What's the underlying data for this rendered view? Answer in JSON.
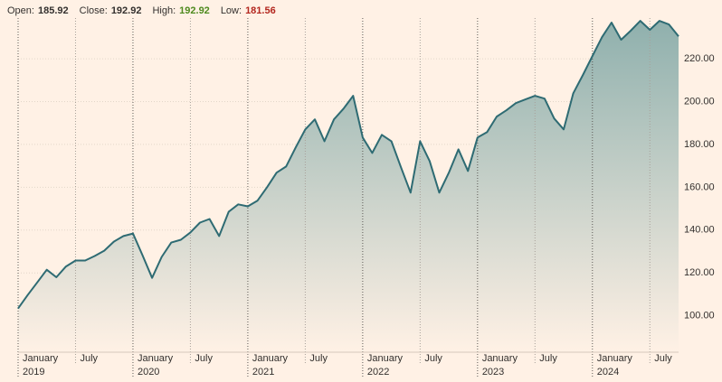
{
  "chart_data": {
    "type": "area-line",
    "header": [
      {
        "label": "Open:",
        "value": 185.92,
        "color": "#33302e"
      },
      {
        "label": "Close:",
        "value": 192.92,
        "color": "#33302e"
      },
      {
        "label": "High:",
        "value": 192.92,
        "color": "#4e8a1e"
      },
      {
        "label": "Low:",
        "value": 181.56,
        "color": "#b3261e"
      }
    ],
    "x": [
      "2019-01",
      "2019-02",
      "2019-03",
      "2019-04",
      "2019-05",
      "2019-06",
      "2019-07",
      "2019-08",
      "2019-09",
      "2019-10",
      "2019-11",
      "2019-12",
      "2020-01",
      "2020-02",
      "2020-03",
      "2020-04",
      "2020-05",
      "2020-06",
      "2020-07",
      "2020-08",
      "2020-09",
      "2020-10",
      "2020-11",
      "2020-12",
      "2021-01",
      "2021-02",
      "2021-03",
      "2021-04",
      "2021-05",
      "2021-06",
      "2021-07",
      "2021-08",
      "2021-09",
      "2021-10",
      "2021-11",
      "2021-12",
      "2022-01",
      "2022-02",
      "2022-03",
      "2022-04",
      "2022-05",
      "2022-06",
      "2022-07",
      "2022-08",
      "2022-09",
      "2022-10",
      "2022-11",
      "2022-12",
      "2023-01",
      "2023-02",
      "2023-03",
      "2023-04",
      "2023-05",
      "2023-06",
      "2023-07",
      "2023-08",
      "2023-09",
      "2023-10",
      "2023-11",
      "2023-12",
      "2024-01",
      "2024-02",
      "2024-03",
      "2024-04",
      "2024-05",
      "2024-06",
      "2024-07",
      "2024-08",
      "2024-09",
      "2024-10"
    ],
    "series": [
      {
        "color": "#2e6b73",
        "values": [
          103.4,
          109.7,
          115.6,
          121.5,
          118,
          123,
          125.8,
          125.8,
          127.9,
          130.4,
          134.6,
          137.2,
          138.4,
          128.3,
          117.7,
          127.5,
          134.2,
          135.5,
          138.9,
          143.5,
          145.2,
          137.2,
          148.6,
          152,
          151.1,
          153.7,
          160,
          166.8,
          169.7,
          178.6,
          187,
          191.7,
          181.5,
          191.7,
          196.7,
          202.7,
          183.2,
          176,
          184.5,
          181.5,
          169.3,
          157.5,
          181.5,
          172.2,
          157.5,
          166.8,
          177.7,
          167.6,
          183.2,
          185.8,
          193,
          195.9,
          199.3,
          201,
          202.7,
          201.4,
          192.1,
          187,
          203.9,
          212.4,
          221.3,
          230.1,
          236.9,
          228.9,
          233.1,
          237.7,
          233.5,
          237.7,
          236,
          230.5
        ]
      }
    ],
    "xlim": [
      "2019-01",
      "2024-10"
    ],
    "ylim": [
      83,
      239
    ],
    "yticks": [
      {
        "value": 100,
        "label": "100.00"
      },
      {
        "value": 120,
        "label": "120.00"
      },
      {
        "value": 140,
        "label": "140.00"
      },
      {
        "value": 160,
        "label": "160.00"
      },
      {
        "value": 180,
        "label": "180.00"
      },
      {
        "value": 200,
        "label": "200.00"
      },
      {
        "value": 220,
        "label": "220.00"
      }
    ],
    "xticks": [
      {
        "value": "2019-01",
        "label": "January",
        "year": "2019"
      },
      {
        "value": "2019-07",
        "label": "July"
      },
      {
        "value": "2020-01",
        "label": "January",
        "year": "2020"
      },
      {
        "value": "2020-07",
        "label": "July"
      },
      {
        "value": "2021-01",
        "label": "January",
        "year": "2021"
      },
      {
        "value": "2021-07",
        "label": "July"
      },
      {
        "value": "2022-01",
        "label": "January",
        "year": "2022"
      },
      {
        "value": "2022-07",
        "label": "July"
      },
      {
        "value": "2023-01",
        "label": "January",
        "year": "2023"
      },
      {
        "value": "2023-07",
        "label": "July"
      },
      {
        "value": "2024-01",
        "label": "January",
        "year": "2024"
      },
      {
        "value": "2024-07",
        "label": "July"
      }
    ],
    "grid": true
  }
}
